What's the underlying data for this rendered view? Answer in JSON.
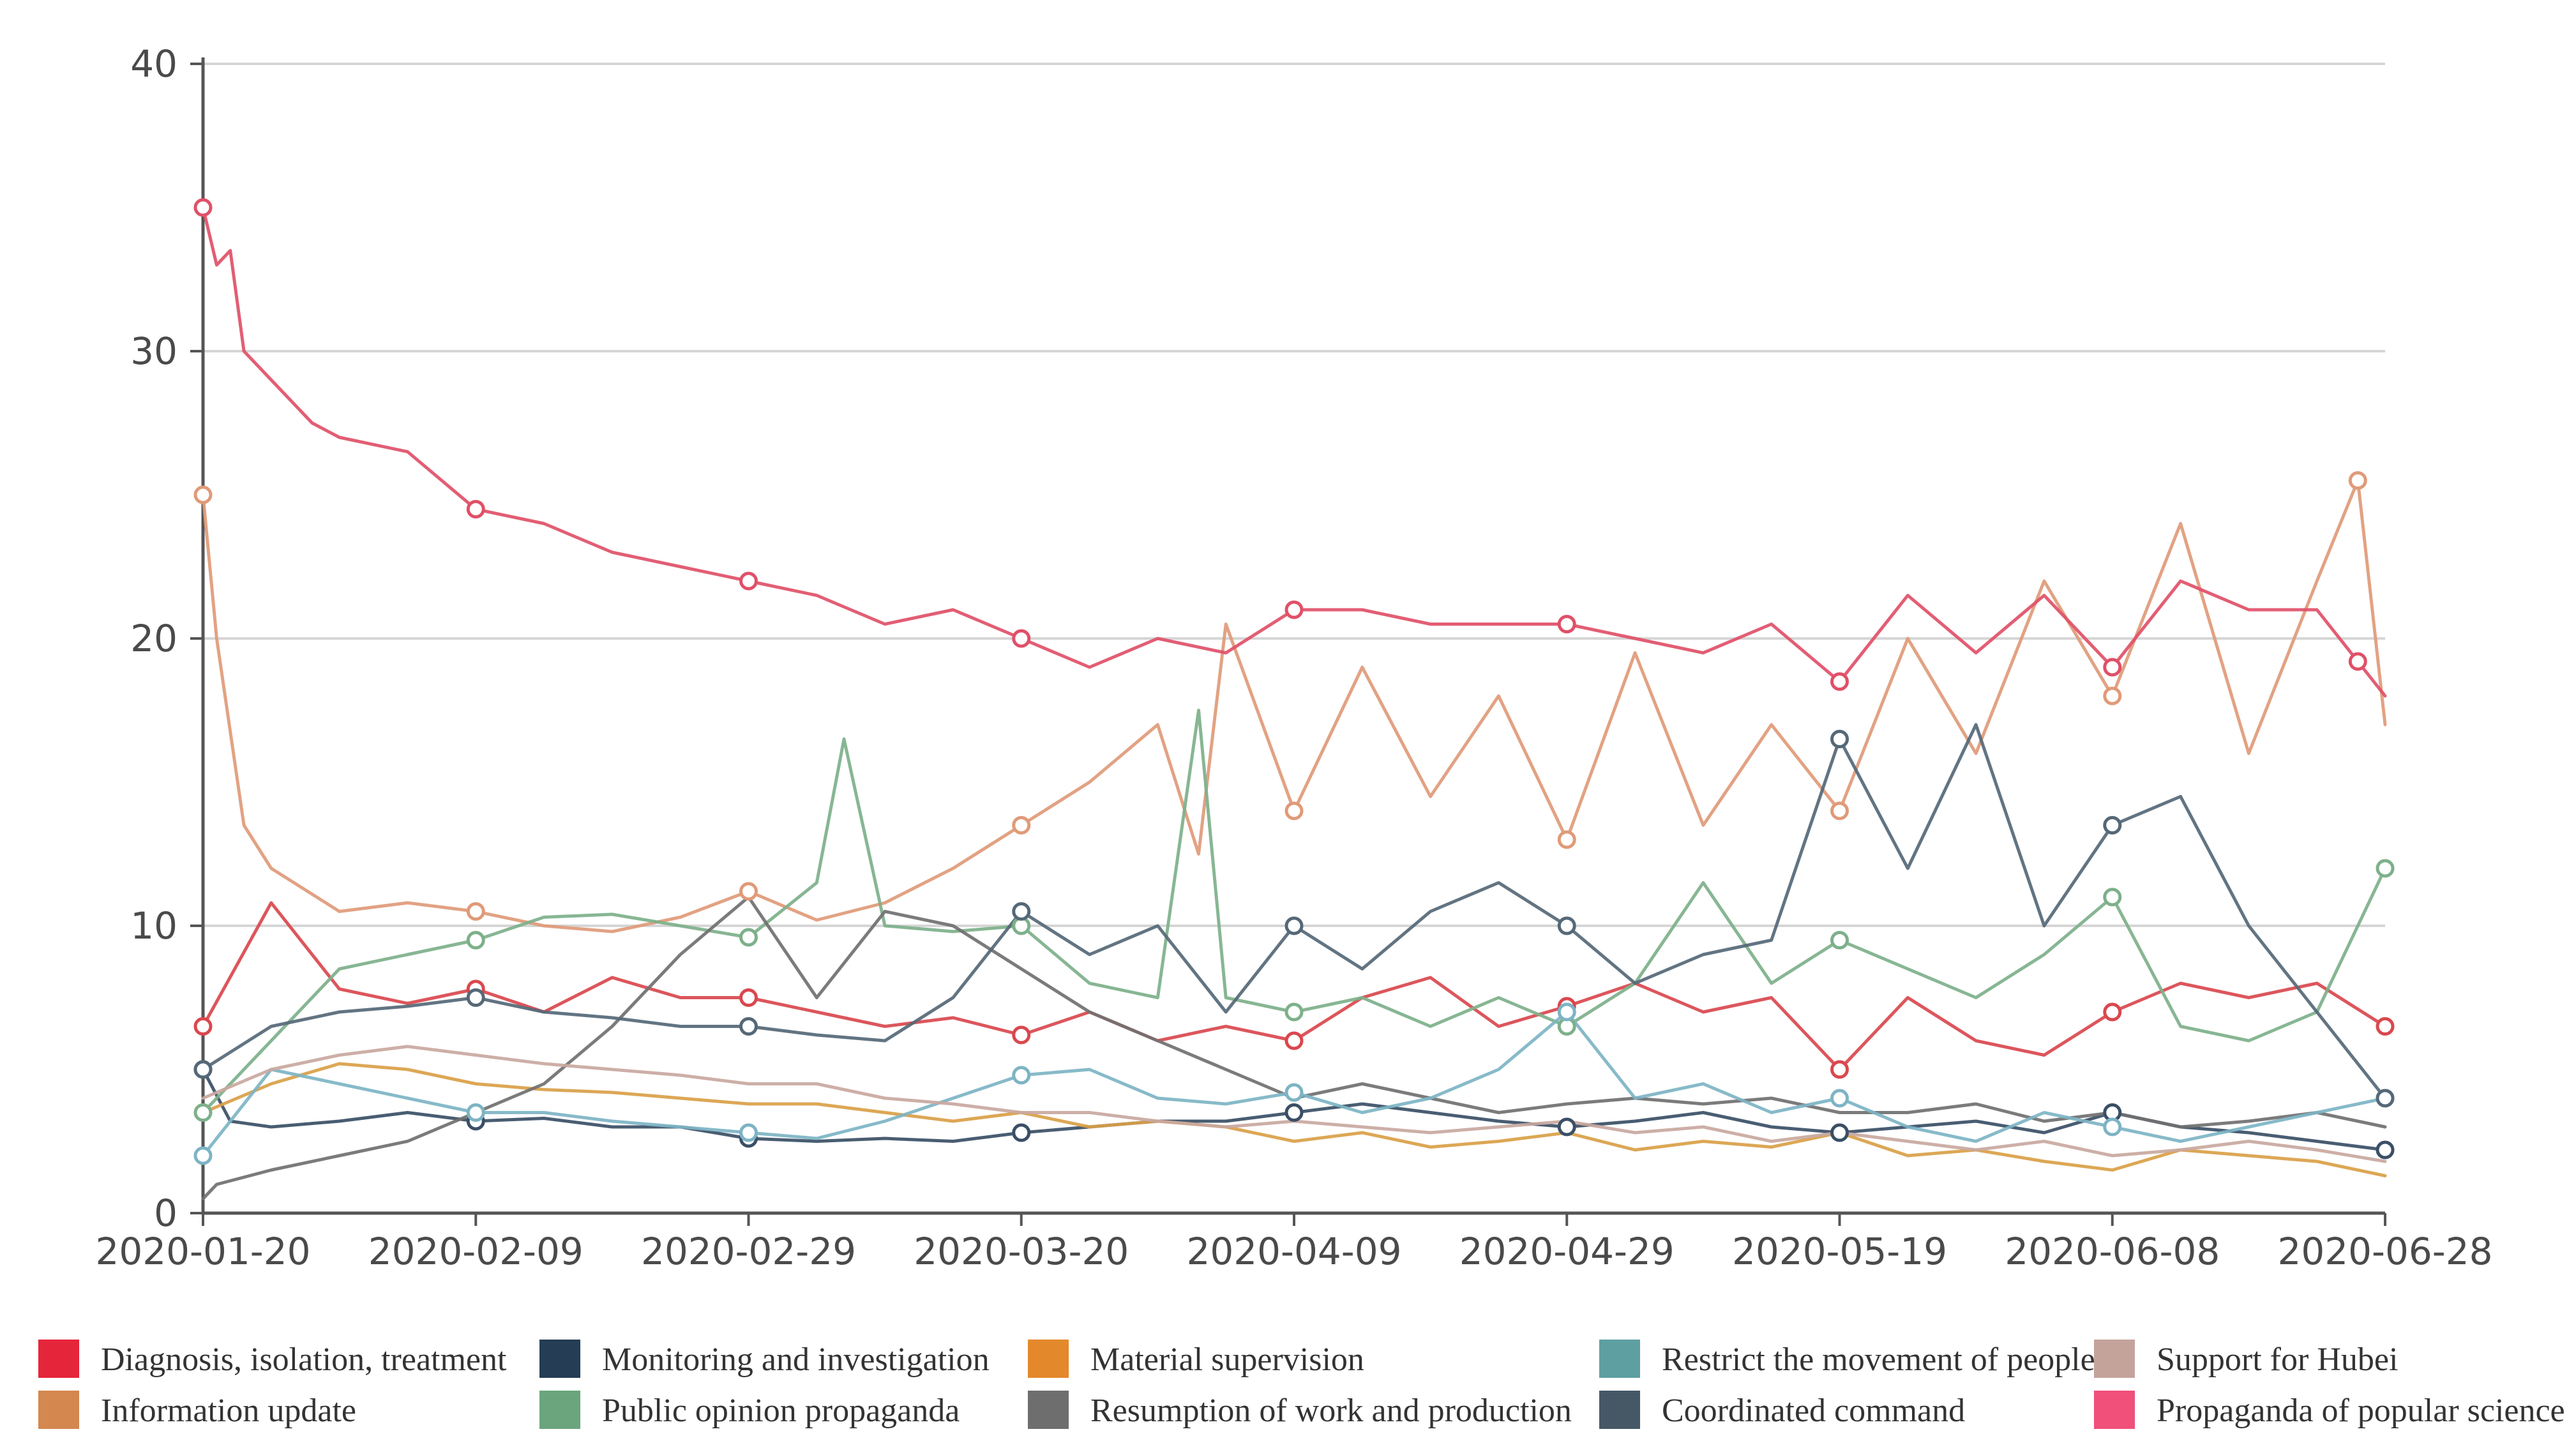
{
  "chart_data": {
    "type": "line",
    "title": "",
    "xlabel": "",
    "ylabel": "",
    "ylim": [
      0,
      40
    ],
    "y_ticks": [
      "0",
      "10",
      "20",
      "30",
      "40"
    ],
    "grid": "horizontal",
    "legend_position": "bottom",
    "x_tick_labels": [
      "2020-01-20",
      "2020-02-09",
      "2020-02-29",
      "2020-03-20",
      "2020-04-09",
      "2020-04-29",
      "2020-05-19",
      "2020-06-08",
      "2020-06-28"
    ],
    "x_range_days": [
      0,
      160
    ],
    "series": [
      {
        "name": "Diagnosis, isolation, treatment",
        "color": "#e5253a",
        "line_color": "#d9484e",
        "x": [
          0,
          5,
          10,
          15,
          20,
          25,
          30,
          35,
          40,
          45,
          50,
          55,
          60,
          65,
          70,
          75,
          80,
          85,
          90,
          95,
          100,
          105,
          110,
          115,
          120,
          125,
          130,
          135,
          140,
          145,
          150,
          155,
          160
        ],
        "values": [
          6.5,
          10.8,
          7.8,
          7.3,
          7.8,
          7.0,
          8.2,
          7.5,
          7.5,
          7.0,
          6.5,
          6.8,
          6.2,
          7.0,
          6.0,
          6.5,
          6.0,
          7.5,
          8.2,
          6.5,
          7.2,
          8.0,
          7.0,
          7.5,
          5.0,
          7.5,
          6.0,
          5.5,
          7.0,
          8.0,
          7.5,
          8.0,
          6.5
        ]
      },
      {
        "name": "Information update",
        "color": "#d4874e",
        "line_color": "#e09a78",
        "x": [
          0,
          1,
          3,
          5,
          10,
          15,
          20,
          25,
          30,
          35,
          40,
          45,
          50,
          55,
          60,
          65,
          70,
          73,
          75,
          80,
          85,
          90,
          95,
          100,
          105,
          110,
          115,
          120,
          125,
          130,
          135,
          140,
          145,
          150,
          155,
          158,
          160
        ],
        "values": [
          25.0,
          20.0,
          13.5,
          12.0,
          10.5,
          10.8,
          10.5,
          10.0,
          9.8,
          10.3,
          11.2,
          10.2,
          10.8,
          12.0,
          13.5,
          15.0,
          17.0,
          12.5,
          20.5,
          14.0,
          19.0,
          14.5,
          18.0,
          13.0,
          19.5,
          13.5,
          17.0,
          14.0,
          20.0,
          16.0,
          22.0,
          18.0,
          24.0,
          16.0,
          22.0,
          25.5,
          17.0
        ]
      },
      {
        "name": "Monitoring and investigation",
        "color": "#253d55",
        "line_color": "#3a4f66",
        "x": [
          0,
          2,
          5,
          10,
          15,
          20,
          25,
          30,
          35,
          40,
          45,
          50,
          55,
          60,
          65,
          70,
          75,
          80,
          85,
          90,
          95,
          100,
          105,
          110,
          115,
          120,
          125,
          130,
          135,
          140,
          145,
          150,
          155,
          160
        ],
        "values": [
          5.0,
          3.2,
          3.0,
          3.2,
          3.5,
          3.2,
          3.3,
          3.0,
          3.0,
          2.6,
          2.5,
          2.6,
          2.5,
          2.8,
          3.0,
          3.2,
          3.2,
          3.5,
          3.8,
          3.5,
          3.2,
          3.0,
          3.2,
          3.5,
          3.0,
          2.8,
          3.0,
          3.2,
          2.8,
          3.5,
          3.0,
          2.8,
          2.5,
          2.2
        ]
      },
      {
        "name": "Public opinion propaganda",
        "color": "#6aa57d",
        "line_color": "#7db08a",
        "x": [
          0,
          5,
          10,
          15,
          20,
          25,
          30,
          35,
          40,
          45,
          47,
          50,
          55,
          60,
          65,
          70,
          73,
          75,
          80,
          85,
          90,
          95,
          100,
          105,
          110,
          115,
          120,
          125,
          130,
          135,
          140,
          145,
          150,
          155,
          160
        ],
        "values": [
          3.5,
          6.0,
          8.5,
          9.0,
          9.5,
          10.3,
          10.4,
          10.0,
          9.6,
          11.5,
          16.5,
          10.0,
          9.8,
          10.0,
          8.0,
          7.5,
          17.5,
          7.5,
          7.0,
          7.5,
          6.5,
          7.5,
          6.5,
          8.0,
          11.5,
          8.0,
          9.5,
          8.5,
          7.5,
          9.0,
          11.0,
          6.5,
          6.0,
          7.0,
          12.0
        ]
      },
      {
        "name": "Material supervision",
        "color": "#e3892b",
        "line_color": "#d9a047",
        "x": [
          0,
          5,
          10,
          15,
          20,
          25,
          30,
          35,
          40,
          45,
          50,
          55,
          60,
          65,
          70,
          75,
          80,
          85,
          90,
          95,
          100,
          105,
          110,
          115,
          120,
          125,
          130,
          135,
          140,
          145,
          150,
          155,
          160
        ],
        "values": [
          3.5,
          4.5,
          5.2,
          5.0,
          4.5,
          4.3,
          4.2,
          4.0,
          3.8,
          3.8,
          3.5,
          3.2,
          3.5,
          3.0,
          3.2,
          3.0,
          2.5,
          2.8,
          2.3,
          2.5,
          2.8,
          2.2,
          2.5,
          2.3,
          2.8,
          2.0,
          2.2,
          1.8,
          1.5,
          2.2,
          2.0,
          1.8,
          1.3
        ]
      },
      {
        "name": "Resumption of work and production",
        "color": "#6e6e6e",
        "line_color": "#707070",
        "x": [
          0,
          1,
          5,
          10,
          15,
          20,
          25,
          30,
          35,
          40,
          45,
          50,
          55,
          60,
          65,
          70,
          75,
          80,
          85,
          90,
          95,
          100,
          105,
          110,
          115,
          120,
          125,
          130,
          135,
          140,
          145,
          150,
          155,
          160
        ],
        "values": [
          0.5,
          1.0,
          1.5,
          2.0,
          2.5,
          3.5,
          4.5,
          6.5,
          9.0,
          11.0,
          7.5,
          10.5,
          10.0,
          8.5,
          7.0,
          6.0,
          5.0,
          4.0,
          4.5,
          4.0,
          3.5,
          3.8,
          4.0,
          3.8,
          4.0,
          3.5,
          3.5,
          3.8,
          3.2,
          3.5,
          3.0,
          3.2,
          3.5,
          3.0
        ]
      },
      {
        "name": "Restrict the movement of people",
        "color": "#5e9fa2",
        "line_color": "#7db4c4",
        "x": [
          0,
          5,
          10,
          15,
          20,
          25,
          30,
          35,
          40,
          45,
          50,
          55,
          60,
          65,
          70,
          75,
          80,
          85,
          90,
          95,
          100,
          105,
          110,
          115,
          120,
          125,
          130,
          135,
          140,
          145,
          150,
          155,
          160
        ],
        "values": [
          2.0,
          5.0,
          4.5,
          4.0,
          3.5,
          3.5,
          3.2,
          3.0,
          2.8,
          2.6,
          3.2,
          4.0,
          4.8,
          5.0,
          4.0,
          3.8,
          4.2,
          3.5,
          4.0,
          5.0,
          7.0,
          4.0,
          4.5,
          3.5,
          4.0,
          3.0,
          2.5,
          3.5,
          3.0,
          2.5,
          3.0,
          3.5,
          4.0
        ]
      },
      {
        "name": "Coordinated command",
        "color": "#465866",
        "line_color": "#556877",
        "x": [
          0,
          5,
          10,
          15,
          20,
          25,
          30,
          35,
          40,
          45,
          50,
          55,
          60,
          65,
          70,
          75,
          80,
          85,
          90,
          95,
          100,
          105,
          110,
          115,
          120,
          125,
          130,
          135,
          140,
          145,
          150,
          155,
          160
        ],
        "values": [
          5.0,
          6.5,
          7.0,
          7.2,
          7.5,
          7.0,
          6.8,
          6.5,
          6.5,
          6.2,
          6.0,
          7.5,
          10.5,
          9.0,
          10.0,
          7.0,
          10.0,
          8.5,
          10.5,
          11.5,
          10.0,
          8.0,
          9.0,
          9.5,
          16.5,
          12.0,
          17.0,
          10.0,
          13.5,
          14.5,
          10.0,
          7.0,
          4.0
        ]
      },
      {
        "name": "Support for Hubei",
        "color": "#c4a39b",
        "line_color": "#c9a8a0",
        "x": [
          0,
          5,
          10,
          15,
          20,
          25,
          30,
          35,
          40,
          45,
          50,
          55,
          60,
          65,
          70,
          75,
          80,
          85,
          90,
          95,
          100,
          105,
          110,
          115,
          120,
          125,
          130,
          135,
          140,
          145,
          150,
          155,
          160
        ],
        "values": [
          4.0,
          5.0,
          5.5,
          5.8,
          5.5,
          5.2,
          5.0,
          4.8,
          4.5,
          4.5,
          4.0,
          3.8,
          3.5,
          3.5,
          3.2,
          3.0,
          3.2,
          3.0,
          2.8,
          3.0,
          3.2,
          2.8,
          3.0,
          2.5,
          2.8,
          2.5,
          2.2,
          2.5,
          2.0,
          2.2,
          2.5,
          2.2,
          1.8
        ]
      },
      {
        "name": "Propaganda of popular science",
        "color": "#f0507a",
        "line_color": "#e05068",
        "x": [
          0,
          1,
          2,
          3,
          5,
          8,
          10,
          15,
          20,
          25,
          30,
          35,
          40,
          45,
          50,
          55,
          60,
          65,
          70,
          75,
          80,
          85,
          90,
          95,
          100,
          105,
          110,
          115,
          120,
          125,
          130,
          135,
          140,
          145,
          150,
          155,
          160
        ],
        "values": [
          35.0,
          33.0,
          33.5,
          30.0,
          29.0,
          27.5,
          27.0,
          26.5,
          24.5,
          24.0,
          23.0,
          22.5,
          22.0,
          21.5,
          20.5,
          21.0,
          20.0,
          19.0,
          20.0,
          19.5,
          21.0,
          21.0,
          20.5,
          20.5,
          20.5,
          20.0,
          19.5,
          20.5,
          18.5,
          21.5,
          19.5,
          21.5,
          19.0,
          22.0,
          21.0,
          21.0,
          18.0
        ]
      }
    ],
    "markers": [
      {
        "series": 0,
        "x": [
          0,
          20,
          40,
          60,
          80,
          100,
          120,
          140,
          160
        ]
      },
      {
        "series": 1,
        "x": [
          0,
          20,
          40,
          60,
          80,
          100,
          120,
          140,
          158
        ]
      },
      {
        "series": 2,
        "x": [
          0,
          20,
          40,
          60,
          80,
          100,
          120,
          140,
          160
        ]
      },
      {
        "series": 3,
        "x": [
          0,
          20,
          40,
          60,
          80,
          100,
          120,
          140,
          160
        ]
      },
      {
        "series": 6,
        "x": [
          0,
          20,
          40,
          60,
          80,
          100,
          120,
          140,
          160
        ]
      },
      {
        "series": 7,
        "x": [
          0,
          20,
          40,
          60,
          80,
          100,
          120,
          140,
          160
        ]
      },
      {
        "series": 9,
        "x": [
          0,
          20,
          40,
          60,
          80,
          100,
          120,
          140,
          158
        ]
      }
    ]
  }
}
